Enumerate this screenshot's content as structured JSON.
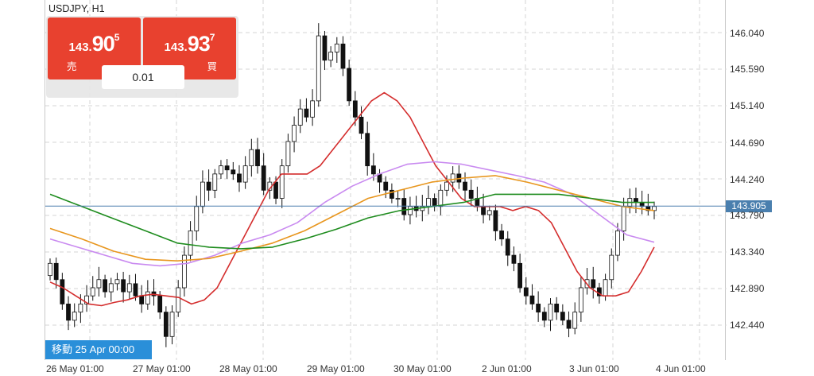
{
  "symbol": "USDJPY, H1",
  "sell": {
    "price_small": "143.",
    "price_big": "90",
    "price_sup": "5",
    "label": "売"
  },
  "buy": {
    "price_small": "143.",
    "price_big": "93",
    "price_sup": "7",
    "label": "買"
  },
  "lot_size": "0.01",
  "navigation_label": "移動 25 Apr 00:00",
  "current_price": "143.905",
  "colors": {
    "sell_button": "#e8412f",
    "buy_button": "#e8412f",
    "bullish_candle": "#ffffff",
    "bearish_candle": "#111111",
    "ma_red": "#d42d2d",
    "ma_purple": "#c98af0",
    "ma_orange": "#e8961e",
    "ma_green": "#1e8c1e",
    "price_line": "#4a7fae",
    "nav_badge": "#2a8fd9"
  },
  "chart_data": {
    "type": "candlestick",
    "grid": true,
    "y_axis": {
      "ticks": [
        "146.040",
        "145.590",
        "145.140",
        "144.690",
        "144.240",
        "143.790",
        "143.340",
        "142.890",
        "142.440"
      ],
      "values": [
        146.04,
        145.59,
        145.14,
        144.69,
        144.24,
        143.79,
        143.34,
        142.89,
        142.44
      ]
    },
    "x_axis": {
      "ticks": [
        "26 May 01:00",
        "27 May 01:00",
        "28 May 01:00",
        "29 May 01:00",
        "30 May 01:00",
        "2 Jun 01:00",
        "3 Jun 01:00",
        "4 Jun 01:00"
      ]
    },
    "candles_close": [
      143.2,
      143.0,
      142.7,
      142.5,
      142.6,
      142.7,
      142.8,
      142.9,
      143.0,
      142.85,
      142.95,
      143.0,
      142.85,
      142.95,
      142.8,
      142.7,
      142.85,
      142.8,
      142.6,
      142.3,
      142.6,
      142.9,
      143.3,
      143.6,
      143.9,
      144.2,
      144.1,
      144.3,
      144.4,
      144.35,
      144.3,
      144.2,
      144.4,
      144.6,
      144.4,
      144.1,
      144.2,
      144.0,
      144.4,
      144.7,
      144.9,
      145.1,
      145.0,
      145.2,
      146.0,
      145.7,
      145.8,
      145.9,
      145.6,
      145.2,
      145.0,
      144.8,
      144.4,
      144.3,
      144.2,
      144.1,
      144.0,
      144.0,
      143.8,
      143.9,
      143.85,
      143.9,
      144.0,
      143.9,
      144.1,
      144.2,
      144.3,
      144.2,
      144.1,
      144.0,
      143.9,
      143.8,
      143.85,
      143.6,
      143.5,
      143.3,
      143.2,
      142.9,
      142.8,
      142.7,
      142.6,
      142.5,
      142.7,
      142.6,
      142.5,
      142.4,
      142.6,
      142.9,
      143.0,
      142.9,
      142.8,
      143.0,
      143.3,
      143.6,
      143.9,
      144.0,
      143.95,
      143.9,
      143.85,
      143.9
    ],
    "series": [
      {
        "name": "",
        "color": "#d42d2d",
        "values": [
          142.97,
          142.9,
          142.8,
          142.7,
          142.68,
          142.72,
          142.75,
          142.8,
          142.82,
          142.8,
          142.78,
          142.7,
          142.75,
          142.9,
          143.2,
          143.5,
          143.8,
          144.1,
          144.3,
          144.3,
          144.3,
          144.4,
          144.6,
          144.8,
          145.0,
          145.2,
          145.3,
          145.2,
          145.0,
          144.7,
          144.4,
          144.2,
          144.0,
          143.9,
          143.9,
          143.9,
          143.85,
          143.9,
          143.85,
          143.7,
          143.4,
          143.1,
          142.9,
          142.8,
          142.8,
          142.85,
          143.1,
          143.4
        ]
      },
      {
        "name": "",
        "color": "#c98af0",
        "values": [
          143.5,
          143.4,
          143.3,
          143.2,
          143.17,
          143.2,
          143.3,
          143.45,
          143.55,
          143.7,
          143.95,
          144.15,
          144.3,
          144.42,
          144.45,
          144.42,
          144.35,
          144.28,
          144.2,
          144.05,
          143.8,
          143.55,
          143.46
        ]
      },
      {
        "name": "",
        "color": "#e8961e",
        "values": [
          143.63,
          143.5,
          143.35,
          143.25,
          143.23,
          143.26,
          143.35,
          143.45,
          143.6,
          143.8,
          144.0,
          144.1,
          144.2,
          144.25,
          144.28,
          144.2,
          144.1,
          144.0,
          143.9,
          143.85
        ]
      },
      {
        "name": "",
        "color": "#1e8c1e",
        "values": [
          144.05,
          143.9,
          143.75,
          143.6,
          143.45,
          143.4,
          143.38,
          143.4,
          143.5,
          143.62,
          143.76,
          143.85,
          143.9,
          143.95,
          144.05,
          144.05,
          144.05,
          144.0,
          143.95,
          143.95
        ]
      }
    ]
  }
}
